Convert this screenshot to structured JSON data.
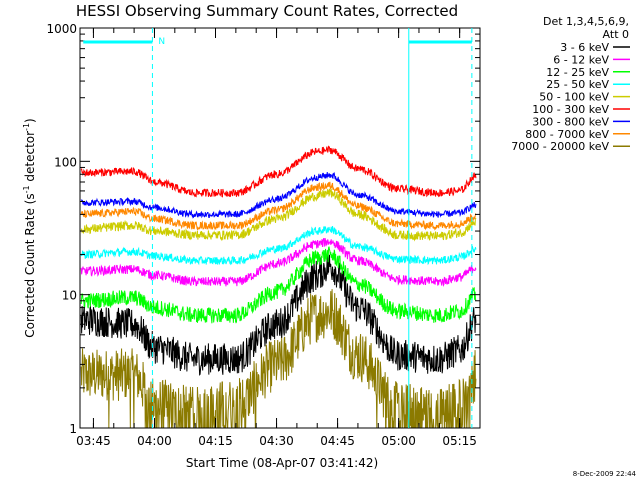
{
  "chart_data": {
    "type": "line",
    "title": "HESSI Observing Summary Count Rates, Corrected",
    "xlabel": "Start Time (08-Apr-07 03:41:42)",
    "ylabel": "Corrected Count Rate (s",
    "ylabel_sup1": "-1",
    "ylabel_mid": " detector",
    "ylabel_sup2": "-1",
    "ylabel_end": ")",
    "y_scale": "log",
    "ylim": [
      1,
      1000
    ],
    "y_ticks": [
      {
        "v": 1,
        "label": "1"
      },
      {
        "v": 10,
        "label": "10"
      },
      {
        "v": 100,
        "label": "100"
      },
      {
        "v": 1000,
        "label": "1000"
      }
    ],
    "x_time_range": [
      "03:41:42",
      "05:20:00"
    ],
    "x_ticks": [
      {
        "t": "03:45",
        "label": "03:45"
      },
      {
        "t": "04:00",
        "label": "04:00"
      },
      {
        "t": "04:15",
        "label": "04:15"
      },
      {
        "t": "04:30",
        "label": "04:30"
      },
      {
        "t": "04:45",
        "label": "04:45"
      },
      {
        "t": "05:00",
        "label": "05:00"
      },
      {
        "t": "05:15",
        "label": "05:15"
      }
    ],
    "legend_header": [
      "Det 1,3,4,5,6,9,",
      "Att 0"
    ],
    "legend_placement": "right",
    "series": [
      {
        "name": "3 - 6 keV",
        "color": "#000000",
        "times": [
          "03:42",
          "03:55",
          "04:00",
          "04:10",
          "04:20",
          "04:30",
          "04:40",
          "04:43",
          "04:50",
          "05:00",
          "05:10",
          "05:15",
          "05:19"
        ],
        "values": [
          6.5,
          6.0,
          4.0,
          3.3,
          3.3,
          6.0,
          14.0,
          16.5,
          8.0,
          3.5,
          3.3,
          3.8,
          6.5
        ]
      },
      {
        "name": "6 - 12 keV",
        "color": "#ff00ff",
        "times": [
          "03:42",
          "03:55",
          "04:00",
          "04:10",
          "04:20",
          "04:30",
          "04:40",
          "04:43",
          "04:50",
          "05:00",
          "05:10",
          "05:15",
          "05:19"
        ],
        "values": [
          15.0,
          15.5,
          14.0,
          12.5,
          12.5,
          17.0,
          24.0,
          25.0,
          18.0,
          13.0,
          12.5,
          13.5,
          16.0
        ]
      },
      {
        "name": "12 - 25 keV",
        "color": "#00ff00",
        "times": [
          "03:42",
          "03:55",
          "04:00",
          "04:10",
          "04:20",
          "04:30",
          "04:40",
          "04:43",
          "04:50",
          "05:00",
          "05:10",
          "05:15",
          "05:19"
        ],
        "values": [
          9.0,
          9.5,
          8.0,
          7.0,
          7.0,
          10.5,
          19.0,
          20.0,
          12.0,
          7.5,
          7.0,
          7.5,
          10.0
        ]
      },
      {
        "name": "25 - 50 keV",
        "color": "#00ffff",
        "times": [
          "03:42",
          "03:55",
          "04:00",
          "04:10",
          "04:20",
          "04:30",
          "04:40",
          "04:43",
          "04:50",
          "05:00",
          "05:10",
          "05:15",
          "05:19"
        ],
        "values": [
          20.0,
          21.0,
          19.5,
          18.0,
          18.0,
          22.0,
          30.0,
          31.0,
          23.0,
          18.5,
          18.0,
          19.0,
          22.0
        ]
      },
      {
        "name": "50 - 100 keV",
        "color": "#cccc00",
        "times": [
          "03:42",
          "03:55",
          "04:00",
          "04:10",
          "04:20",
          "04:30",
          "04:40",
          "04:43",
          "04:50",
          "05:00",
          "05:10",
          "05:15",
          "05:19"
        ],
        "values": [
          31.0,
          33.0,
          30.0,
          28.0,
          28.0,
          37.0,
          55.0,
          58.0,
          40.0,
          28.0,
          27.5,
          29.0,
          35.0
        ]
      },
      {
        "name": "100 - 300 keV",
        "color": "#ff0000",
        "times": [
          "03:42",
          "03:55",
          "04:00",
          "04:10",
          "04:20",
          "04:30",
          "04:40",
          "04:43",
          "04:50",
          "05:00",
          "05:10",
          "05:15",
          "05:19"
        ],
        "values": [
          82.0,
          84.0,
          70.0,
          58.0,
          58.0,
          80.0,
          118.0,
          122.0,
          88.0,
          62.0,
          58.0,
          60.0,
          78.0
        ]
      },
      {
        "name": "300 - 800 keV",
        "color": "#0000ff",
        "times": [
          "03:42",
          "03:55",
          "04:00",
          "04:10",
          "04:20",
          "04:30",
          "04:40",
          "04:43",
          "04:50",
          "05:00",
          "05:10",
          "05:15",
          "05:19"
        ],
        "values": [
          49.0,
          50.0,
          45.0,
          40.0,
          40.0,
          52.0,
          76.0,
          79.0,
          56.0,
          42.0,
          40.0,
          41.0,
          47.0
        ]
      },
      {
        "name": "800 - 7000 keV",
        "color": "#ff8800",
        "times": [
          "03:42",
          "03:55",
          "04:00",
          "04:10",
          "04:20",
          "04:30",
          "04:40",
          "04:43",
          "04:50",
          "05:00",
          "05:10",
          "05:15",
          "05:19"
        ],
        "values": [
          40.0,
          42.0,
          37.0,
          33.0,
          33.0,
          43.0,
          64.0,
          66.0,
          46.0,
          34.0,
          33.0,
          34.0,
          39.0
        ]
      },
      {
        "name": "7000 - 20000 keV",
        "color": "#8b7a00",
        "times": [
          "03:42",
          "03:55",
          "04:00",
          "04:10",
          "04:20",
          "04:30",
          "04:40",
          "04:43",
          "04:50",
          "05:00",
          "05:10",
          "05:15",
          "05:19"
        ],
        "values": [
          2.5,
          2.5,
          1.5,
          1.3,
          1.5,
          3.0,
          7.0,
          7.5,
          3.5,
          1.4,
          1.3,
          1.5,
          2.5
        ]
      }
    ],
    "event_lines": [
      {
        "t": "03:59:30",
        "color": "#00ffff",
        "style": "dashed"
      },
      {
        "t": "05:02:30",
        "color": "#00ffff",
        "style": "solid"
      },
      {
        "t": "05:18:00",
        "color": "#00ffff",
        "style": "dashed"
      }
    ],
    "night_bars": [
      {
        "start": "03:42:30",
        "end": "03:59:30",
        "color": "#00ffff",
        "label": "N"
      },
      {
        "start": "05:02:30",
        "end": "05:18:00",
        "color": "#00ffff",
        "label": ""
      }
    ],
    "saa_interval": {
      "start": "03:41:42",
      "end": "03:59:30"
    },
    "grid": false
  },
  "timestamp": "8-Dec-2009 22:44"
}
